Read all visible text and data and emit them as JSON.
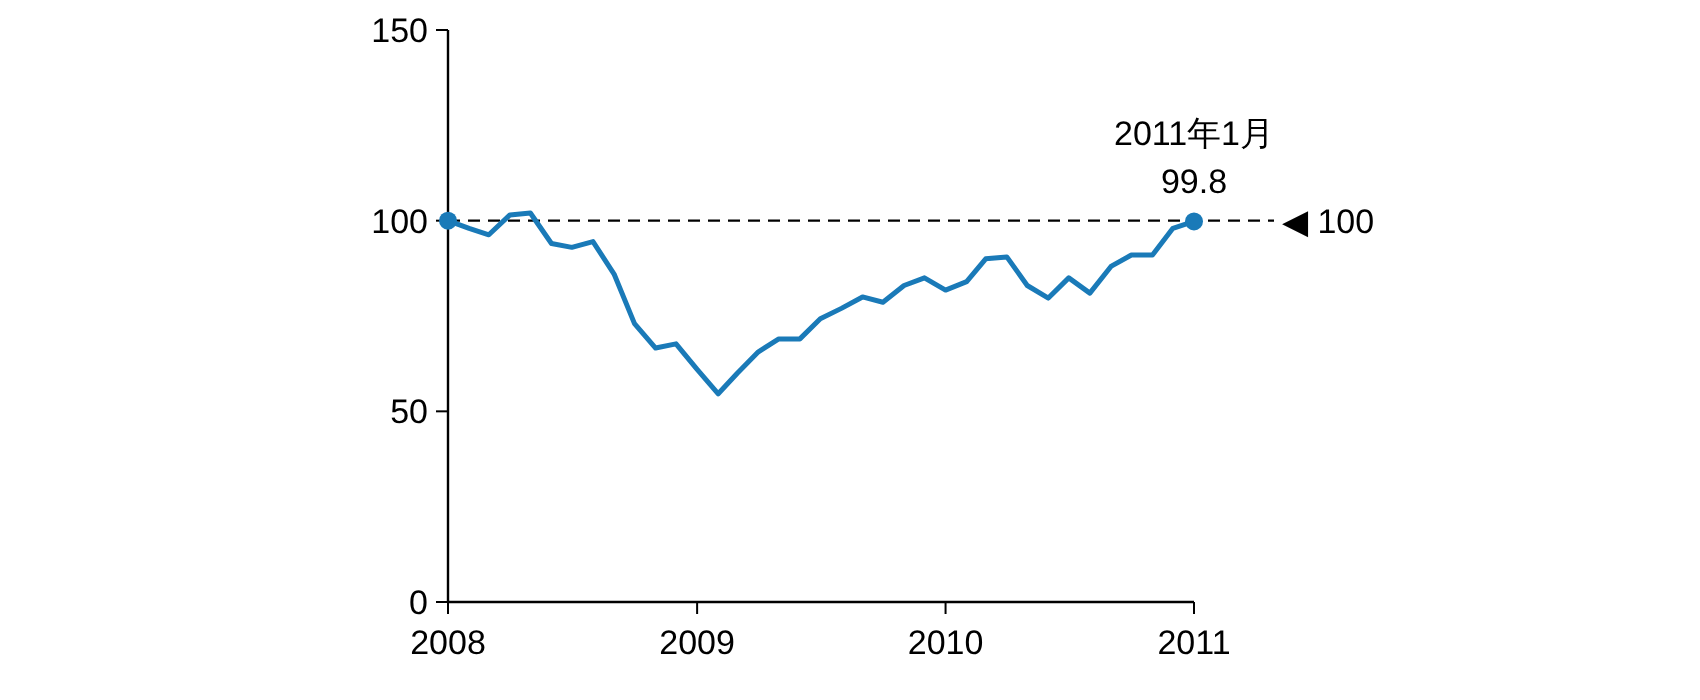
{
  "chart_data": {
    "type": "line",
    "xlim": [
      "2008-01",
      "2011-01"
    ],
    "xticks": [
      {
        "value": "2008-01",
        "label": "2008"
      },
      {
        "value": "2009-01",
        "label": "2009"
      },
      {
        "value": "2010-01",
        "label": "2010"
      },
      {
        "value": "2011-01",
        "label": "2011"
      }
    ],
    "ylim": [
      0,
      150
    ],
    "yticks": [
      0,
      50,
      100,
      150
    ],
    "grid": false,
    "ref_lines": [
      {
        "axis": "y",
        "value": 100,
        "label": "◀ 100",
        "line_style": "dashed",
        "color": "#000000"
      }
    ],
    "annotations": [
      {
        "text": "2011年1月",
        "x": "2011-01",
        "y": 99.8
      }
    ],
    "series": [
      {
        "color": "#1a7ab8",
        "x": [
          "2008-01",
          "2008-02",
          "2008-03",
          "2008-04",
          "2008-05",
          "2008-06",
          "2008-07",
          "2008-08",
          "2008-09",
          "2008-10",
          "2008-11",
          "2008-12",
          "2009-01",
          "2009-02",
          "2009-03",
          "2009-04",
          "2009-05",
          "2009-06",
          "2009-07",
          "2009-08",
          "2009-09",
          "2009-10",
          "2009-11",
          "2009-12",
          "2010-01",
          "2010-02",
          "2010-03",
          "2010-04",
          "2010-05",
          "2010-06",
          "2010-07",
          "2010-08",
          "2010-09",
          "2010-10",
          "2010-11",
          "2010-12",
          "2011-01"
        ],
        "values": [
          100,
          98,
          96.3,
          101.5,
          102,
          94,
          93,
          94.5,
          86,
          73,
          66.6,
          67.7,
          61,
          54.6,
          60,
          65.6,
          69,
          69,
          74.3,
          77,
          80,
          78.6,
          83,
          85,
          81.8,
          84,
          90,
          90.5,
          83,
          79.7,
          85,
          81,
          88,
          91,
          91,
          98,
          99.8
        ]
      },
      {
        "type": "scatter",
        "color": "#1a7ab8",
        "marker": "circle",
        "x": [
          "2008-01",
          "2011-01"
        ],
        "values": [
          100,
          99.8
        ],
        "value_labels": [
          null,
          "99.8"
        ]
      }
    ]
  }
}
